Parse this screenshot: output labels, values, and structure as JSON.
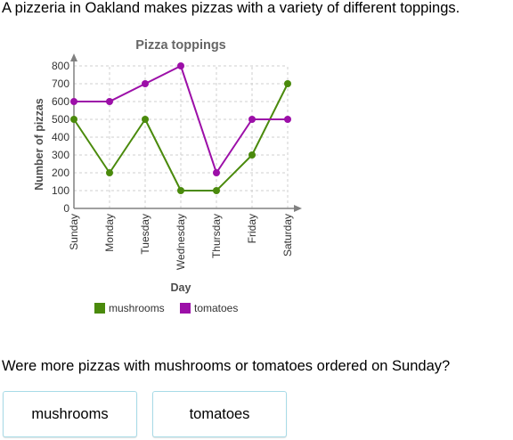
{
  "intro_text": "A pizzeria in Oakland makes pizzas with a variety of different toppings.",
  "question_text": "Were more pizzas with mushrooms or tomatoes ordered on Sunday?",
  "answers": [
    {
      "label": "mushrooms"
    },
    {
      "label": "tomatoes"
    }
  ],
  "chart_data": {
    "type": "line",
    "title": "Pizza toppings",
    "xlabel": "Day",
    "ylabel": "Number of pizzas",
    "categories": [
      "Sunday",
      "Monday",
      "Tuesday",
      "Wednesday",
      "Thursday",
      "Friday",
      "Saturday"
    ],
    "ylim": [
      0,
      800
    ],
    "yticks": [
      0,
      100,
      200,
      300,
      400,
      500,
      600,
      700,
      800
    ],
    "grid": true,
    "legend_position": "bottom",
    "series": [
      {
        "name": "mushrooms",
        "color": "#4a8a0c",
        "values": [
          500,
          200,
          500,
          100,
          100,
          300,
          700
        ]
      },
      {
        "name": "tomatoes",
        "color": "#9c0fa8",
        "values": [
          600,
          600,
          700,
          800,
          200,
          500,
          500
        ]
      }
    ]
  }
}
